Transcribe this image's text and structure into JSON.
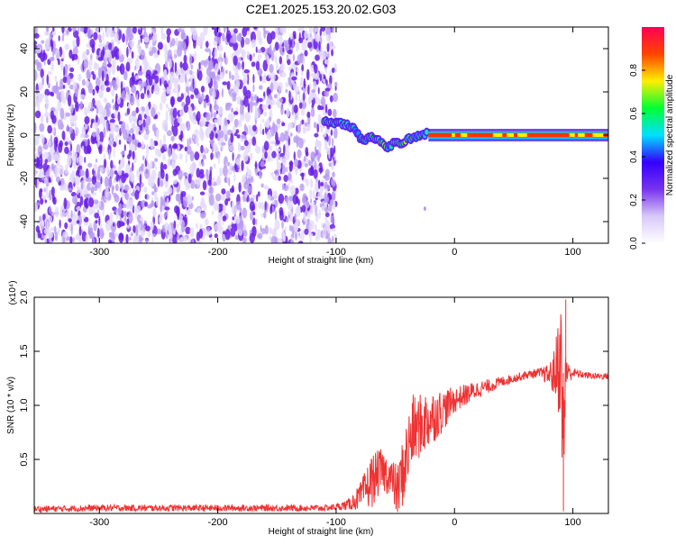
{
  "title": "C2E1.2025.153.20.02.G03",
  "colors": {
    "snr_line": "#ee3333",
    "spectro_speckle": "#6a1ee6",
    "axis": "#000000"
  },
  "chart_data": [
    {
      "type": "heatmap",
      "name": "spectrogram",
      "xlabel": "Height of straight line (km)",
      "ylabel": "Frequency (Hz)",
      "xlim": [
        -355,
        130
      ],
      "ylim": [
        -50,
        50
      ],
      "x_ticks": [
        -300,
        -200,
        -100,
        0,
        100
      ],
      "y_ticks": [
        -40,
        -20,
        0,
        20,
        40
      ],
      "grid": false,
      "features": [
        {
          "description": "broadband speckle noise",
          "x_range": [
            -355,
            -100
          ],
          "y_range": [
            -50,
            50
          ],
          "amplitude": 0.15
        },
        {
          "description": "wandering signal trace",
          "points": [
            [
              -110,
              6
            ],
            [
              -100,
              6
            ],
            [
              -92,
              5
            ],
            [
              -85,
              3
            ],
            [
              -80,
              -1
            ],
            [
              -75,
              -2
            ],
            [
              -70,
              -1
            ],
            [
              -64,
              -2
            ],
            [
              -58,
              -6
            ],
            [
              -52,
              -4
            ],
            [
              -46,
              -4
            ],
            [
              -40,
              -2
            ],
            [
              -34,
              -1
            ],
            [
              -28,
              0
            ],
            [
              -22,
              1
            ]
          ],
          "amplitude": 0.4
        },
        {
          "description": "steady carrier line",
          "points": [
            [
              -22,
              0
            ],
            [
              130,
              0
            ]
          ],
          "amplitude": 0.9
        }
      ],
      "colorbar": {
        "label": "Normalized spectral amplitude",
        "range": [
          0,
          1
        ],
        "ticks": [
          "0.0",
          "0.2",
          "0.4",
          "0.6",
          "0.8"
        ],
        "tick_values": [
          0.0,
          0.2,
          0.4,
          0.6,
          0.8
        ],
        "colors": [
          "#ffffff",
          "#d8c8f8",
          "#7733ee",
          "#3300ff",
          "#00e0ff",
          "#00ff33",
          "#ffee00",
          "#ff4400",
          "#ff0055"
        ]
      }
    },
    {
      "type": "line",
      "name": "snr",
      "xlabel": "Height of straight line (km)",
      "ylabel": "SNR (10 * v/v)",
      "y_multiplier": "(x10⁴)",
      "xlim": [
        -355,
        130
      ],
      "ylim": [
        0,
        2.0
      ],
      "x_ticks": [
        -300,
        -200,
        -100,
        0,
        100
      ],
      "y_ticks": [
        0.5,
        1.0,
        1.5,
        2.0
      ],
      "y_tick_labels": [
        "0.5",
        "1.0",
        "1.5",
        "2.0"
      ],
      "grid": false,
      "series": [
        {
          "x": [
            -355,
            -300,
            -250,
            -200,
            -150,
            -110,
            -100,
            -90,
            -80,
            -70,
            -62,
            -55,
            -48,
            -42,
            -36,
            -30,
            -24,
            -18,
            -10,
            0,
            10,
            20,
            30,
            40,
            50,
            60,
            70,
            80,
            85,
            88,
            90,
            92,
            94,
            96,
            100,
            110,
            120,
            130
          ],
          "y": [
            0.04,
            0.05,
            0.05,
            0.05,
            0.05,
            0.05,
            0.06,
            0.08,
            0.15,
            0.3,
            0.4,
            0.35,
            0.2,
            0.45,
            0.75,
            0.8,
            0.85,
            0.9,
            0.95,
            1.05,
            1.1,
            1.15,
            1.18,
            1.22,
            1.25,
            1.28,
            1.3,
            1.28,
            1.3,
            1.4,
            1.45,
            0.5,
            1.4,
            1.3,
            1.3,
            1.28,
            1.27,
            1.27
          ],
          "noise": [
            0.03,
            0.03,
            0.03,
            0.03,
            0.03,
            0.03,
            0.03,
            0.05,
            0.12,
            0.25,
            0.2,
            0.18,
            0.25,
            0.35,
            0.35,
            0.3,
            0.3,
            0.25,
            0.2,
            0.12,
            0.1,
            0.08,
            0.06,
            0.05,
            0.04,
            0.04,
            0.04,
            0.1,
            0.25,
            0.5,
            0.55,
            0.6,
            0.35,
            0.1,
            0.05,
            0.03,
            0.03,
            0.03
          ]
        }
      ]
    }
  ]
}
